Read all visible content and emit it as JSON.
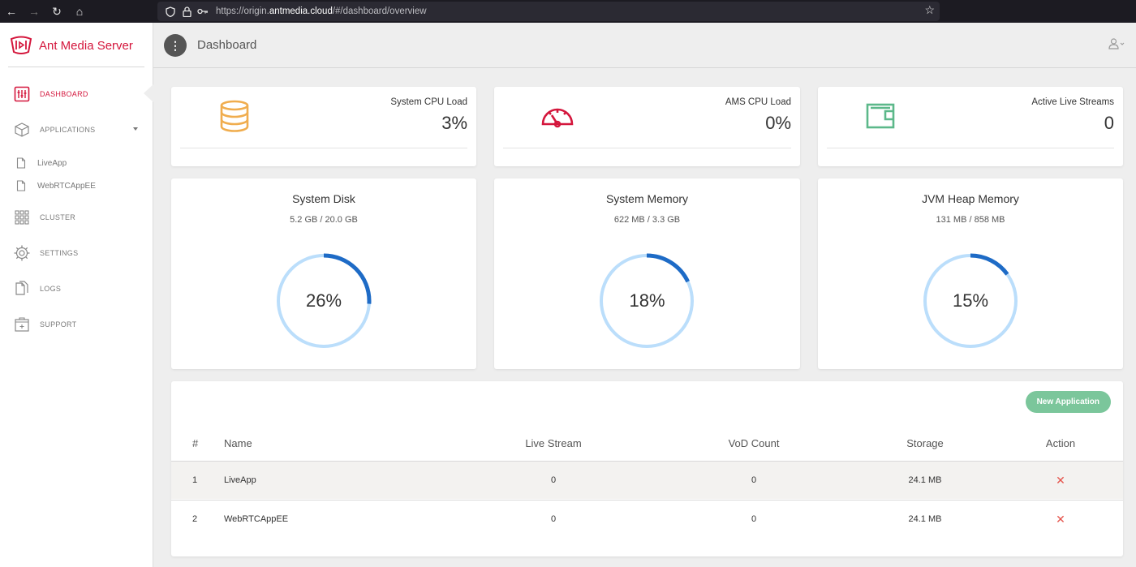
{
  "browser": {
    "url_prefix": "https://origin.",
    "url_domain": "antmedia.cloud",
    "url_suffix": "/#/dashboard/overview"
  },
  "brand": {
    "name": "Ant Media Server",
    "color": "#d4163c"
  },
  "sidebar": {
    "items": [
      {
        "label": "DASHBOARD",
        "icon": "equalizer-icon",
        "active": true
      },
      {
        "label": "APPLICATIONS",
        "icon": "cube-icon"
      },
      {
        "label": "CLUSTER",
        "icon": "grid-icon"
      },
      {
        "label": "SETTINGS",
        "icon": "gear-icon"
      },
      {
        "label": "LOGS",
        "icon": "files-icon"
      },
      {
        "label": "SUPPORT",
        "icon": "support-box-icon"
      }
    ],
    "apps": [
      {
        "label": "LiveApp",
        "icon": "file-icon"
      },
      {
        "label": "WebRTCAppEE",
        "icon": "file-icon"
      }
    ]
  },
  "header": {
    "title": "Dashboard"
  },
  "stats": [
    {
      "label": "System CPU Load",
      "value": "3%",
      "icon": "database-icon",
      "color": "#f0ad4e"
    },
    {
      "label": "AMS CPU Load",
      "value": "0%",
      "icon": "speedometer-icon",
      "color": "#d4163c"
    },
    {
      "label": "Active Live Streams",
      "value": "0",
      "icon": "wallet-icon",
      "color": "#5cb88a"
    }
  ],
  "gauges": [
    {
      "title": "System Disk",
      "sub": "5.2 GB / 20.0 GB",
      "pct_label": "26%",
      "fraction": 0.26
    },
    {
      "title": "System Memory",
      "sub": "622 MB / 3.3 GB",
      "pct_label": "18%",
      "fraction": 0.18
    },
    {
      "title": "JVM Heap Memory",
      "sub": "131 MB / 858 MB",
      "pct_label": "15%",
      "fraction": 0.15
    }
  ],
  "gauge_colors": {
    "track": "#bbdefb",
    "fill": "#1e6bc6"
  },
  "table": {
    "new_app_label": "New Application",
    "headers": {
      "num": "#",
      "name": "Name",
      "live": "Live Stream",
      "vod": "VoD Count",
      "storage": "Storage",
      "action": "Action"
    },
    "rows": [
      {
        "num": "1",
        "name": "LiveApp",
        "live": "0",
        "vod": "0",
        "storage": "24.1 MB"
      },
      {
        "num": "2",
        "name": "WebRTCAppEE",
        "live": "0",
        "vod": "0",
        "storage": "24.1 MB"
      }
    ]
  }
}
